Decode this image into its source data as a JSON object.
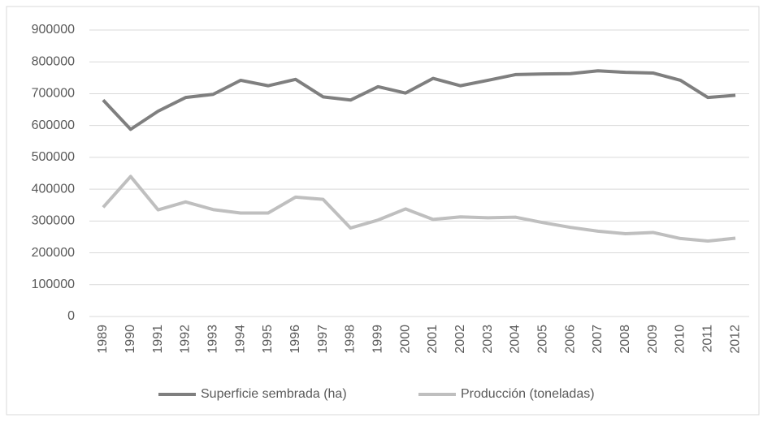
{
  "chart_data": {
    "type": "line",
    "categories": [
      "1989",
      "1990",
      "1991",
      "1992",
      "1993",
      "1994",
      "1995",
      "1996",
      "1997",
      "1998",
      "1999",
      "2000",
      "2001",
      "2002",
      "2003",
      "2004",
      "2005",
      "2006",
      "2007",
      "2008",
      "2009",
      "2010",
      "2011",
      "2012"
    ],
    "series": [
      {
        "name": "Superficie sembrada (ha)",
        "color": "#7f7f7f",
        "values": [
          680000,
          588000,
          645000,
          688000,
          698000,
          742000,
          725000,
          745000,
          690000,
          680000,
          722000,
          702000,
          748000,
          725000,
          742000,
          760000,
          762000,
          763000,
          772000,
          767000,
          765000,
          742000,
          688000,
          695000
        ]
      },
      {
        "name": "Producción (toneladas)",
        "color": "#bfbfbf",
        "values": [
          343000,
          440000,
          335000,
          360000,
          336000,
          325000,
          325000,
          375000,
          368000,
          278000,
          303000,
          338000,
          305000,
          313000,
          310000,
          312000,
          295000,
          280000,
          268000,
          260000,
          264000,
          245000,
          237000,
          246000
        ]
      }
    ],
    "ylim": [
      0,
      900000
    ],
    "yticks": [
      0,
      100000,
      200000,
      300000,
      400000,
      500000,
      600000,
      700000,
      800000,
      900000
    ],
    "grid": true,
    "legend": "bottom"
  }
}
